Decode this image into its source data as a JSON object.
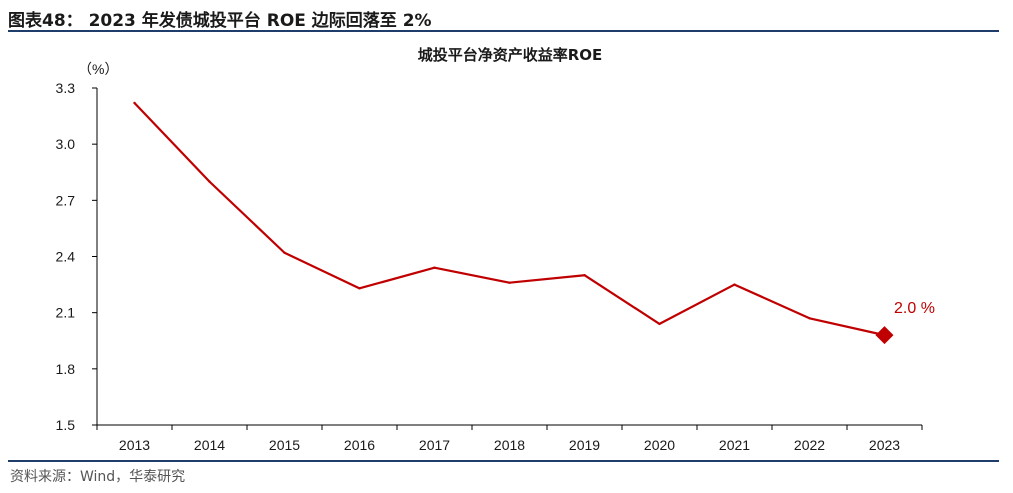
{
  "figure": {
    "title": "图表48： 2023 年发债城投平台 ROE 边际回落至 2%",
    "source": "资料来源：Wind，华泰研究"
  },
  "colors": {
    "line": "#c00000",
    "axis": "#000000",
    "rule": "#1f3d6b"
  },
  "chart_data": {
    "type": "line",
    "title": "城投平台净资产收益率ROE",
    "unit": "（%）",
    "xlabel": "",
    "ylabel": "",
    "categories": [
      "2013",
      "2014",
      "2015",
      "2016",
      "2017",
      "2018",
      "2019",
      "2020",
      "2021",
      "2022",
      "2023"
    ],
    "series": [
      {
        "name": "城投平台净资产收益率ROE",
        "values": [
          3.22,
          2.8,
          2.42,
          2.23,
          2.34,
          2.26,
          2.3,
          2.04,
          2.25,
          2.07,
          1.98
        ]
      }
    ],
    "ylim": [
      1.5,
      3.3
    ],
    "yticks": [
      "1.5",
      "1.8",
      "2.1",
      "2.4",
      "2.7",
      "3.0",
      "3.3"
    ],
    "grid": false,
    "annotation": {
      "category": "2023",
      "text": "2.0 %",
      "marker": "diamond"
    }
  }
}
